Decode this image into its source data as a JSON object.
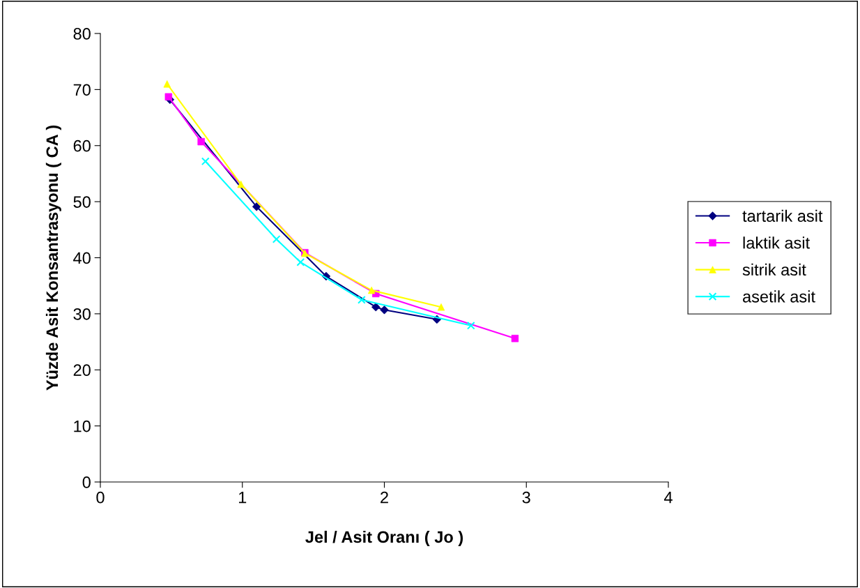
{
  "chart_data": {
    "type": "line",
    "xlabel": "Jel / Asit Oranı ( Jo )",
    "ylabel": "Yüzde Asit Konsantrasyonu ( CA )",
    "xlim": [
      0,
      4
    ],
    "xticks": [
      0,
      1,
      2,
      3,
      4
    ],
    "ylim": [
      0,
      80
    ],
    "yticks": [
      0,
      10,
      20,
      30,
      40,
      50,
      60,
      70,
      80
    ],
    "grid": false,
    "legend": "right",
    "series": [
      {
        "name": "tartarik asit",
        "color": "#000080",
        "marker": "diamond",
        "x": [
          0.49,
          1.1,
          1.59,
          1.94,
          2.0,
          2.37
        ],
        "values": [
          68.2,
          49.1,
          36.7,
          31.2,
          30.7,
          29.0
        ]
      },
      {
        "name": "laktik asit",
        "color": "#ff00ff",
        "marker": "square",
        "x": [
          0.48,
          0.71,
          1.44,
          1.94,
          2.92
        ],
        "values": [
          68.7,
          60.7,
          40.9,
          33.6,
          25.6
        ]
      },
      {
        "name": "sitrik asit",
        "color": "#ffff00",
        "marker": "triangle",
        "x": [
          0.47,
          0.99,
          1.44,
          1.91,
          2.4
        ],
        "values": [
          71.0,
          53.1,
          40.8,
          34.2,
          31.2
        ]
      },
      {
        "name": "asetik asit",
        "color": "#00ffff",
        "marker": "cross",
        "x": [
          0.74,
          1.24,
          1.41,
          1.84,
          2.61
        ],
        "values": [
          57.2,
          43.3,
          39.2,
          32.5,
          27.9
        ]
      }
    ]
  }
}
